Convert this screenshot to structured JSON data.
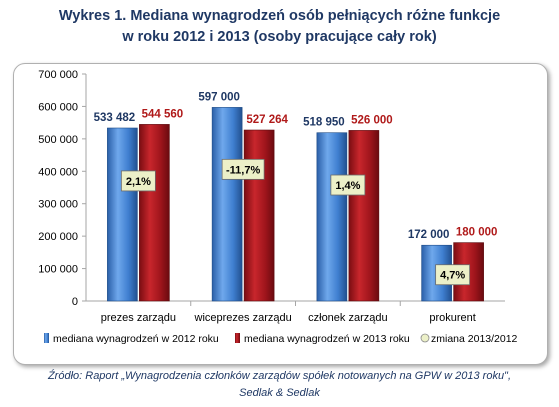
{
  "title": {
    "line1": "Wykres 1. Mediana wynagrodzeń osób pełniących różne funkcje",
    "line2": "w roku 2012 i 2013 (osoby pracujące cały rok)"
  },
  "source": {
    "line1": "Źródło: Raport „Wynagrodzenia członków zarządów spółek notowanych na GPW w 2013 roku\",",
    "line2": "Sedlak & Sedlak"
  },
  "colors": {
    "series_2012": "#3f7fd0",
    "series_2013": "#a0151c",
    "label_2012": "#1f3864",
    "label_2013": "#b01a1a",
    "change_box": "#ecf0c8"
  },
  "chart_data": {
    "type": "bar",
    "categories": [
      "prezes zarządu",
      "wiceprezes zarządu",
      "członek zarządu",
      "prokurent"
    ],
    "series": [
      {
        "name": "mediana wynagrodzeń w 2012 roku",
        "values": [
          533482,
          597000,
          518950,
          172000
        ],
        "labels": [
          "533 482",
          "597 000",
          "518 950",
          "172 000"
        ]
      },
      {
        "name": "mediana wynagrodzeń w 2013 roku",
        "values": [
          544560,
          527264,
          526000,
          180000
        ],
        "labels": [
          "544 560",
          "527 264",
          "526 000",
          "180 000"
        ]
      }
    ],
    "change": {
      "name": "zmiana 2013/2012",
      "labels": [
        "2,1%",
        "-11,7%",
        "1,4%",
        "4,7%"
      ]
    },
    "ylim": [
      0,
      700000
    ],
    "yticks": [
      0,
      100000,
      200000,
      300000,
      400000,
      500000,
      600000,
      700000
    ],
    "ytick_labels": [
      "0",
      "100 000",
      "200 000",
      "300 000",
      "400 000",
      "500 000",
      "600 000",
      "700 000"
    ],
    "grid": false,
    "legend": "bottom"
  }
}
